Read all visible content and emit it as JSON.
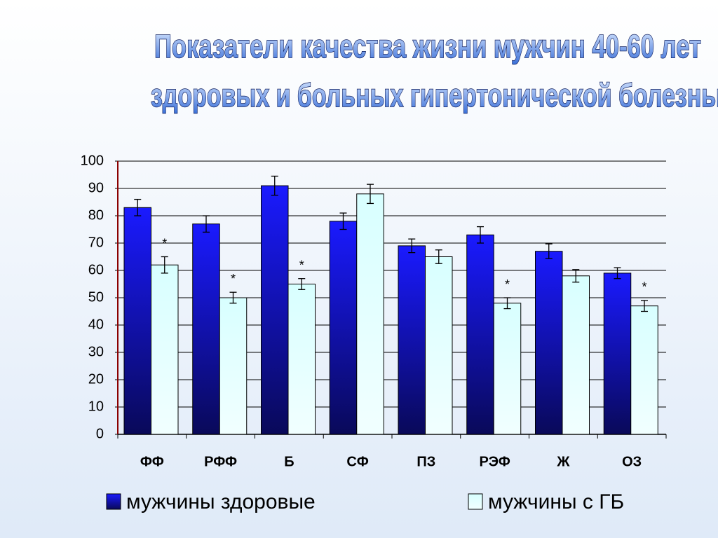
{
  "chart_data": {
    "type": "bar",
    "title": [
      "Показатели качества жизни мужчин 40-60 лет",
      "здоровых и больных гипертонической болезнью"
    ],
    "categories": [
      "ФФ",
      "РФФ",
      "Б",
      "СФ",
      "ПЗ",
      "РЭФ",
      "Ж",
      "ОЗ"
    ],
    "series": [
      {
        "name": "мужчины здоровые",
        "color": "#1a1aff",
        "values": [
          83,
          77,
          91,
          78,
          69,
          73,
          67,
          59
        ],
        "errors": [
          3,
          3,
          3.5,
          3,
          2.5,
          3,
          2.7,
          2
        ]
      },
      {
        "name": "мужчины с ГБ",
        "color": "#d8ffff",
        "values": [
          62,
          50,
          55,
          88,
          65,
          48,
          58,
          47
        ],
        "errors": [
          3,
          2,
          2,
          3.5,
          2.5,
          2,
          2.3,
          2
        ],
        "annotations": [
          "*",
          "*",
          "*",
          null,
          null,
          "*",
          null,
          "*"
        ]
      }
    ],
    "ylim": [
      0,
      100
    ],
    "yticks": [
      0,
      10,
      20,
      30,
      40,
      50,
      60,
      70,
      80,
      90,
      100
    ],
    "grid": true,
    "legend": "bottom"
  }
}
